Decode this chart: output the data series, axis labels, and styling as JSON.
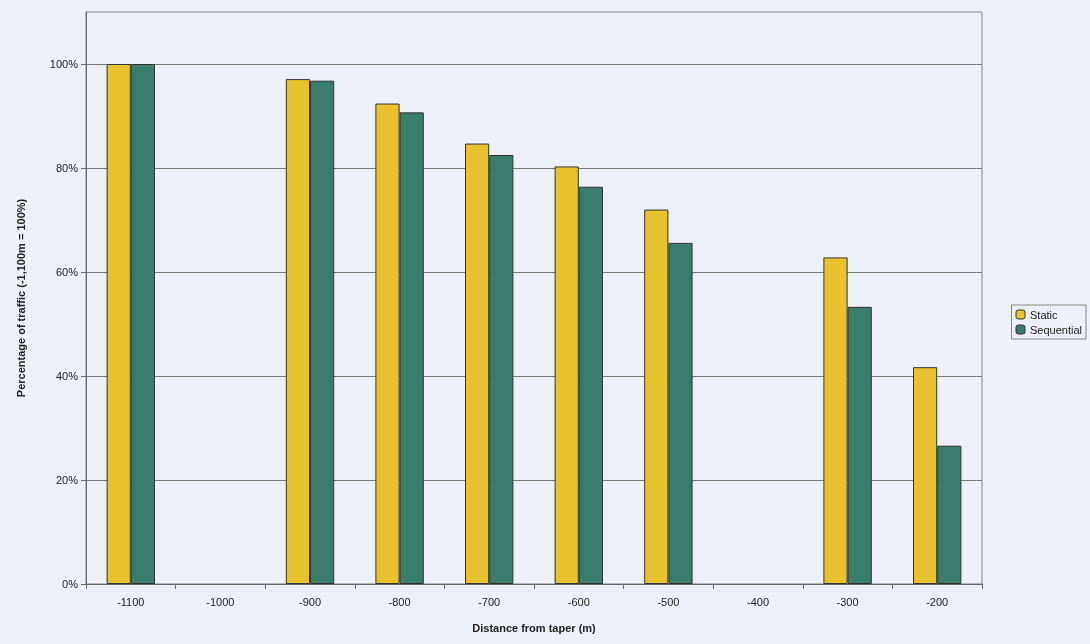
{
  "chart_data": {
    "type": "bar",
    "xlabel": "Distance from taper (m)",
    "ylabel": "Percentage of traffic (-1,100m = 100%)",
    "categories": [
      "-1100",
      "-1000",
      "-900",
      "-800",
      "-700",
      "-600",
      "-500",
      "-400",
      "-300",
      "-200"
    ],
    "series": [
      {
        "name": "Static",
        "color": "#e8c22e",
        "values": [
          100,
          null,
          97.1,
          92.4,
          84.7,
          80.3,
          72.0,
          null,
          62.8,
          41.7
        ]
      },
      {
        "name": "Sequential",
        "color": "#3a7d6c",
        "values": [
          100,
          null,
          96.8,
          90.7,
          82.5,
          76.4,
          65.6,
          null,
          53.3,
          26.6
        ]
      }
    ],
    "ylim": [
      0,
      110
    ],
    "yticks": [
      {
        "value": 0,
        "label": "0%"
      },
      {
        "value": 20,
        "label": "20%"
      },
      {
        "value": 40,
        "label": "40%"
      },
      {
        "value": 60,
        "label": "60%"
      },
      {
        "value": 80,
        "label": "80%"
      },
      {
        "value": 100,
        "label": "100%"
      }
    ],
    "grid": "y",
    "legend": "right"
  }
}
